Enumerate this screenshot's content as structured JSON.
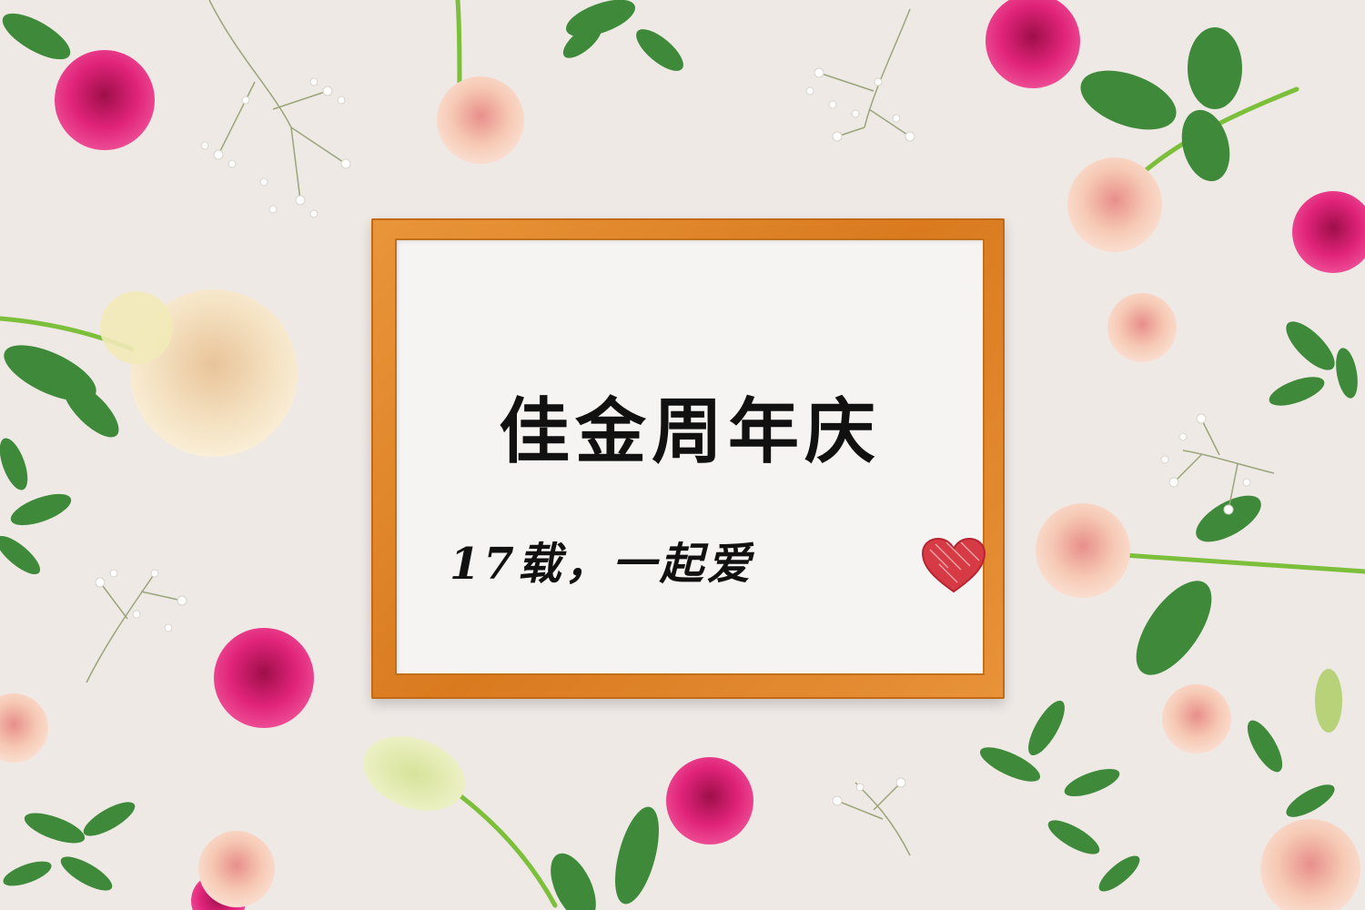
{
  "sign": {
    "title": "佳金周年庆",
    "subtitle": "17载，一起爱"
  },
  "colors": {
    "background": "#efe9e6",
    "frame": "#e08a2c",
    "paper": "#f6f4f3",
    "rose_pink": "#e0237a",
    "rose_peach": "#f6c9b4",
    "rose_cream": "#f4e2c2",
    "leaf": "#3f8a3a",
    "heart": "#d63a44"
  }
}
